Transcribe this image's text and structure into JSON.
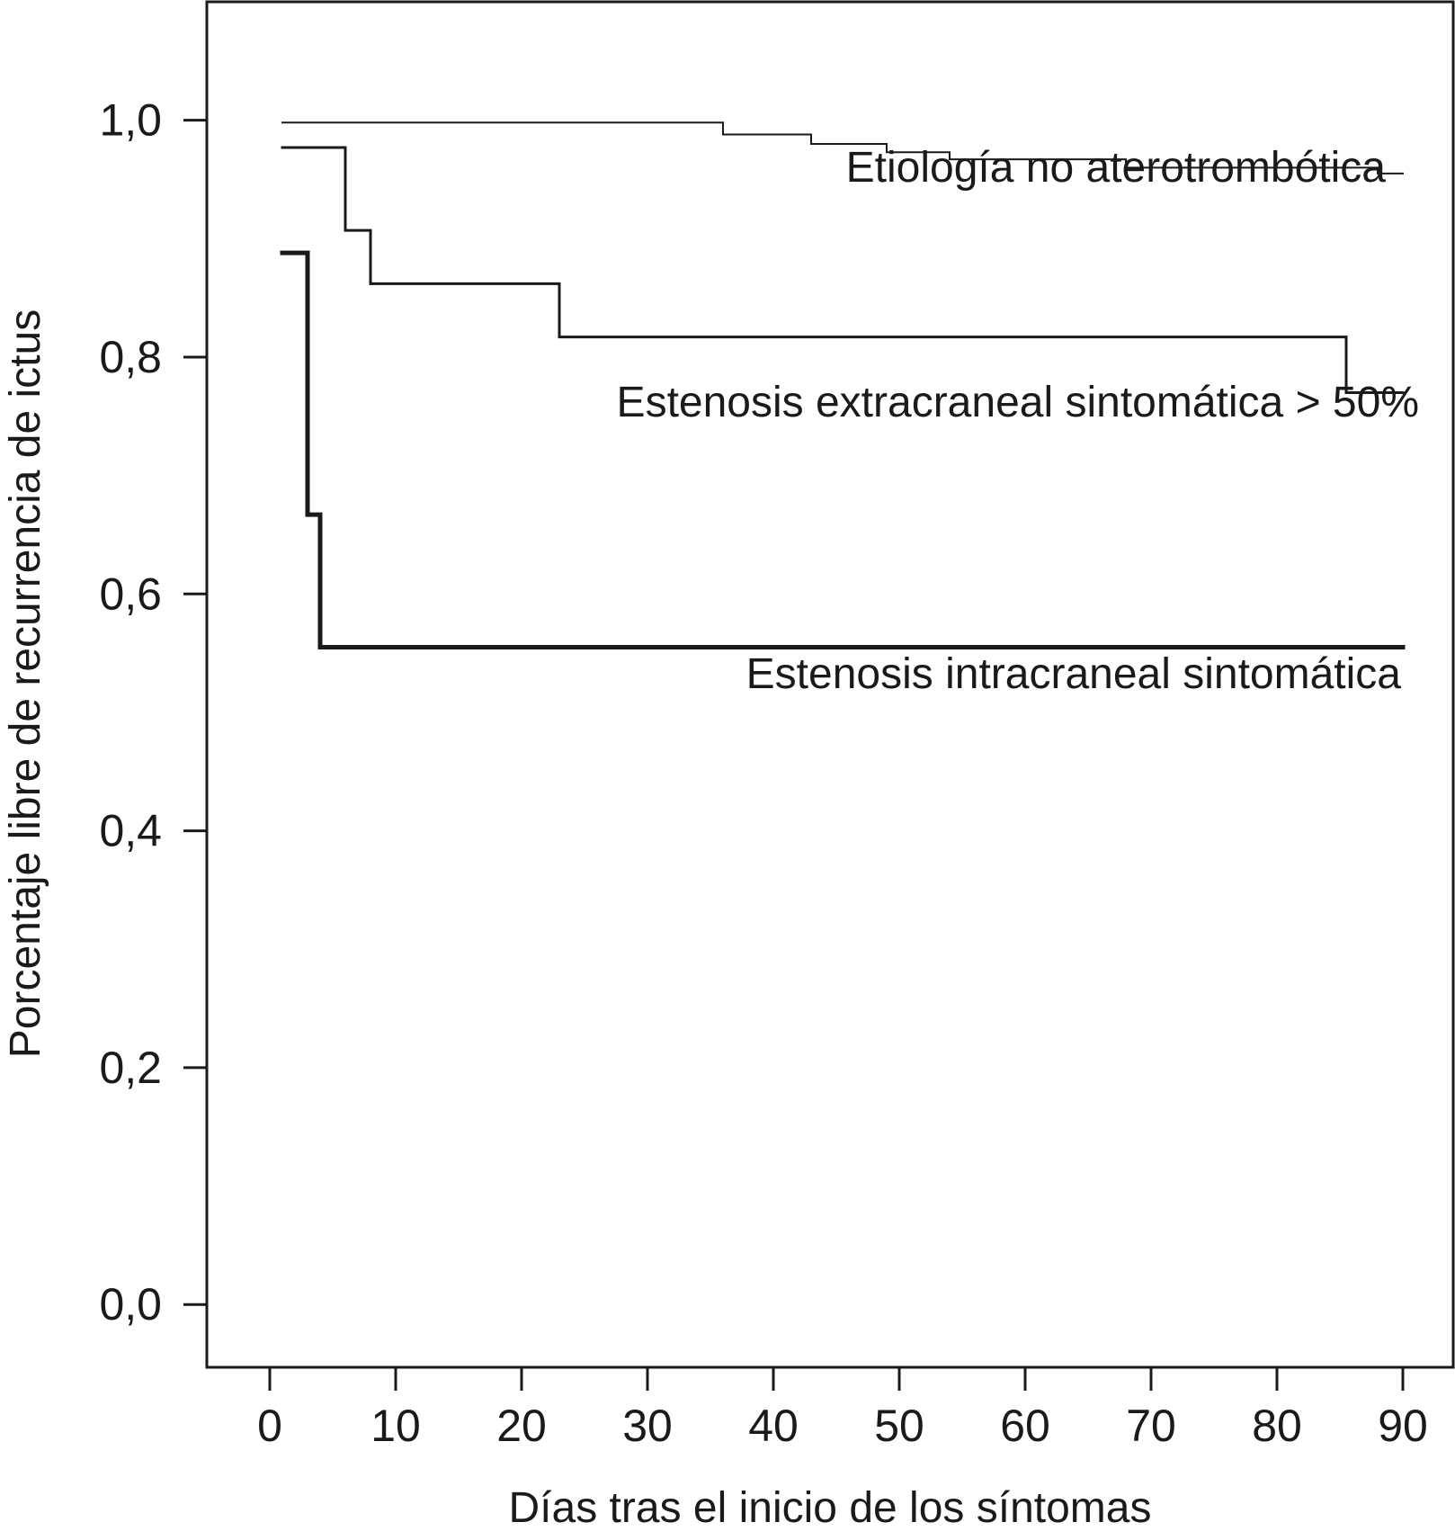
{
  "chart_data": {
    "type": "line",
    "step": "post",
    "title": "",
    "xlabel": "Días tras el inicio de los síntomas",
    "ylabel": "Porcentaje libre de recurrencia de ictus",
    "xlim": [
      -5,
      94
    ],
    "ylim": [
      -0.053,
      1.1
    ],
    "xticks": [
      0,
      10,
      20,
      30,
      40,
      50,
      60,
      70,
      80,
      90
    ],
    "xtick_labels": [
      "0",
      "10",
      "20",
      "30",
      "40",
      "50",
      "60",
      "70",
      "80",
      "90"
    ],
    "yticks": [
      0.0,
      0.2,
      0.4,
      0.6,
      0.8,
      1.0
    ],
    "ytick_labels": [
      "0,0",
      "0,2",
      "0,4",
      "0,6",
      "0,8",
      "1,0"
    ],
    "grid": false,
    "legend": "none",
    "series": [
      {
        "name": "Etiología no aterotrombótica",
        "line_weight": "thin",
        "x": [
          1,
          36,
          43,
          49,
          54,
          68,
          88,
          90
        ],
        "y": [
          0.998,
          0.988,
          0.98,
          0.973,
          0.967,
          0.96,
          0.955,
          0.955
        ]
      },
      {
        "name": "Estenosis extracraneal sintomática > 50%",
        "line_weight": "medium",
        "x": [
          1,
          6,
          8,
          23,
          85.5,
          90
        ],
        "y": [
          0.977,
          0.907,
          0.862,
          0.817,
          0.77,
          0.77
        ]
      },
      {
        "name": "Estenosis intracraneal sintomática",
        "line_weight": "bold",
        "x": [
          1,
          3,
          4,
          90
        ],
        "y": [
          0.888,
          0.667,
          0.555,
          0.555
        ]
      }
    ],
    "colors": {
      "line": "#1a1a1a",
      "frame": "#1a1a1a",
      "background": "#ffffff"
    }
  }
}
